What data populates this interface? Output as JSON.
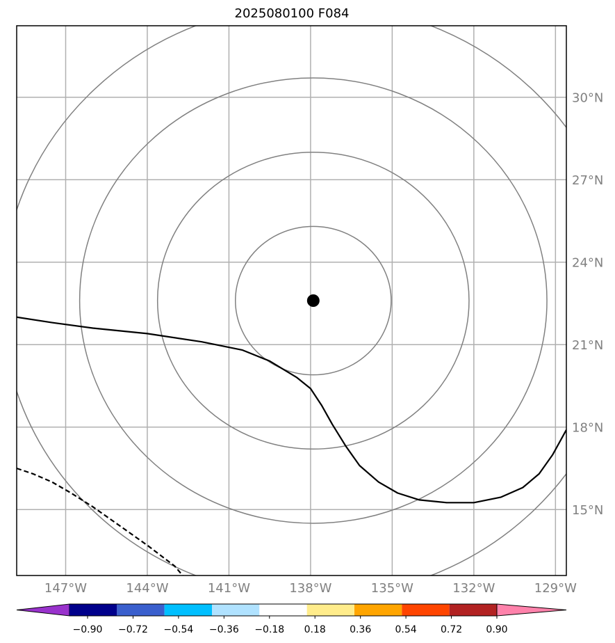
{
  "title": "2025080100 F084",
  "map": {
    "extent": {
      "lon_min": -148.8,
      "lon_max": -128.6,
      "lat_min": 12.6,
      "lat_max": 32.6
    },
    "center_marker": {
      "lon": -137.9,
      "lat": 22.6
    },
    "range_rings_deg": [
      2.7,
      5.4,
      8.1,
      10.8
    ],
    "lon_ticks": [
      {
        "value": -147,
        "label": "147°W"
      },
      {
        "value": -144,
        "label": "144°W"
      },
      {
        "value": -141,
        "label": "141°W"
      },
      {
        "value": -138,
        "label": "138°W"
      },
      {
        "value": -135,
        "label": "135°W"
      },
      {
        "value": -132,
        "label": "132°W"
      },
      {
        "value": -129,
        "label": "129°W"
      }
    ],
    "lat_ticks": [
      {
        "value": 15,
        "label": "15°N"
      },
      {
        "value": 18,
        "label": "18°N"
      },
      {
        "value": 21,
        "label": "21°N"
      },
      {
        "value": 24,
        "label": "24°N"
      },
      {
        "value": 27,
        "label": "27°N"
      },
      {
        "value": 30,
        "label": "30°N"
      }
    ],
    "contours": [
      {
        "style": "solid",
        "points": [
          [
            -148.8,
            22.0
          ],
          [
            -147.5,
            21.8
          ],
          [
            -146.0,
            21.6
          ],
          [
            -144.0,
            21.4
          ],
          [
            -142.0,
            21.1
          ],
          [
            -140.5,
            20.8
          ],
          [
            -139.5,
            20.4
          ],
          [
            -138.5,
            19.8
          ],
          [
            -138.0,
            19.4
          ],
          [
            -137.6,
            18.8
          ],
          [
            -137.2,
            18.1
          ],
          [
            -136.7,
            17.3
          ],
          [
            -136.2,
            16.6
          ],
          [
            -135.5,
            16.0
          ],
          [
            -134.8,
            15.6
          ],
          [
            -134.0,
            15.35
          ],
          [
            -133.0,
            15.25
          ],
          [
            -132.0,
            15.25
          ],
          [
            -131.0,
            15.45
          ],
          [
            -130.2,
            15.8
          ],
          [
            -129.6,
            16.3
          ],
          [
            -129.1,
            17.0
          ],
          [
            -128.6,
            17.9
          ]
        ]
      },
      {
        "style": "dashed",
        "points": [
          [
            -148.8,
            16.5
          ],
          [
            -148.2,
            16.3
          ],
          [
            -147.5,
            16.0
          ],
          [
            -146.8,
            15.6
          ],
          [
            -146.0,
            15.1
          ],
          [
            -145.0,
            14.4
          ],
          [
            -144.0,
            13.7
          ],
          [
            -143.0,
            12.95
          ],
          [
            -142.7,
            12.6
          ]
        ]
      }
    ]
  },
  "colorbar": {
    "colors": [
      "#9932cc",
      "#00008b",
      "#3a5fcd",
      "#00bfff",
      "#b0e2ff",
      "#ffffff",
      "#ffec8b",
      "#ffa500",
      "#ff4500",
      "#b22222",
      "#ff82ab"
    ],
    "tick_labels": [
      "−0.90",
      "−0.72",
      "−0.54",
      "−0.36",
      "−0.18",
      "0.18",
      "0.36",
      "0.54",
      "0.72",
      "0.90"
    ]
  },
  "colors": {
    "gridline": "#b0b0b0",
    "ring": "#808080",
    "contour": "#000000",
    "label": "#808080"
  }
}
